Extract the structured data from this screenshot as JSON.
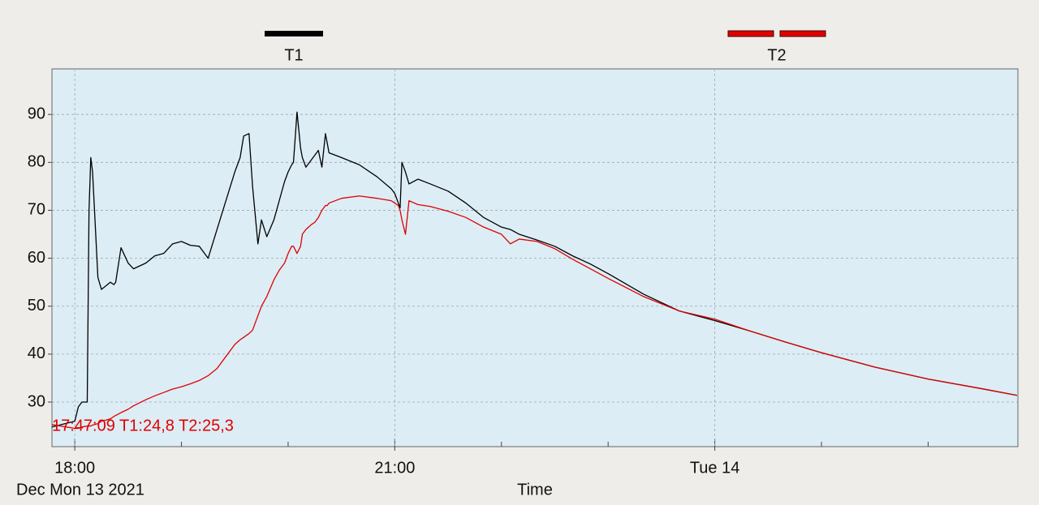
{
  "chart_data": {
    "type": "line",
    "legend_position": "top",
    "x_label": "Time",
    "x_date_label": "Dec Mon 13 2021",
    "annotation": "17:47:09 T1:24,8 T2:25,3",
    "x": [
      "2021-12-13T17:47:09",
      "2021-12-13T18:00",
      "2021-12-13T18:02",
      "2021-12-13T18:04",
      "2021-12-13T18:07",
      "2021-12-13T18:08",
      "2021-12-13T18:09",
      "2021-12-13T18:10",
      "2021-12-13T18:13",
      "2021-12-13T18:15",
      "2021-12-13T18:20",
      "2021-12-13T18:22",
      "2021-12-13T18:23",
      "2021-12-13T18:26",
      "2021-12-13T18:30",
      "2021-12-13T18:33",
      "2021-12-13T18:40",
      "2021-12-13T18:45",
      "2021-12-13T18:50",
      "2021-12-13T18:55",
      "2021-12-13T19:00",
      "2021-12-13T19:05",
      "2021-12-13T19:10",
      "2021-12-13T19:15",
      "2021-12-13T19:20",
      "2021-12-13T19:25",
      "2021-12-13T19:30",
      "2021-12-13T19:33",
      "2021-12-13T19:35",
      "2021-12-13T19:38",
      "2021-12-13T19:40",
      "2021-12-13T19:43",
      "2021-12-13T19:45",
      "2021-12-13T19:48",
      "2021-12-13T19:52",
      "2021-12-13T19:55",
      "2021-12-13T19:58",
      "2021-12-13T20:00",
      "2021-12-13T20:02",
      "2021-12-13T20:03",
      "2021-12-13T20:05",
      "2021-12-13T20:07",
      "2021-12-13T20:08",
      "2021-12-13T20:10",
      "2021-12-13T20:13",
      "2021-12-13T20:15",
      "2021-12-13T20:17",
      "2021-12-13T20:19",
      "2021-12-13T20:21",
      "2021-12-13T20:22",
      "2021-12-13T20:23",
      "2021-12-13T20:30",
      "2021-12-13T20:40",
      "2021-12-13T20:50",
      "2021-12-13T20:58",
      "2021-12-13T21:00",
      "2021-12-13T21:02",
      "2021-12-13T21:03",
      "2021-12-13T21:04",
      "2021-12-13T21:06",
      "2021-12-13T21:08",
      "2021-12-13T21:13",
      "2021-12-13T21:20",
      "2021-12-13T21:30",
      "2021-12-13T21:40",
      "2021-12-13T21:50",
      "2021-12-13T22:00",
      "2021-12-13T22:05",
      "2021-12-13T22:10",
      "2021-12-13T22:20",
      "2021-12-13T22:30",
      "2021-12-13T22:40",
      "2021-12-13T22:50",
      "2021-12-13T23:00",
      "2021-12-13T23:20",
      "2021-12-13T23:40",
      "2021-12-14T00:00",
      "2021-12-14T00:20",
      "2021-12-14T00:40",
      "2021-12-14T01:00",
      "2021-12-14T01:30",
      "2021-12-14T02:00",
      "2021-12-14T02:30",
      "2021-12-14T02:50"
    ],
    "series": [
      {
        "name": "T1",
        "color": "#000000",
        "values": [
          24.8,
          26,
          29,
          30,
          30,
          70,
          81,
          78,
          56,
          53.5,
          55,
          54.5,
          55,
          62.2,
          59,
          57.8,
          59,
          60.5,
          61,
          63,
          63.5,
          62.7,
          62.5,
          60,
          66,
          72,
          78,
          81,
          85.5,
          86,
          75,
          63,
          68,
          64.5,
          68,
          72,
          76,
          78,
          79.5,
          80,
          90.5,
          83,
          81,
          79,
          80.5,
          81.5,
          82.5,
          79,
          86,
          84,
          82,
          81,
          79.5,
          77,
          74.5,
          73.5,
          71.5,
          70.5,
          80,
          78,
          75.5,
          76.5,
          75.5,
          74,
          71.5,
          68.5,
          66.5,
          66,
          65,
          63.8,
          62.5,
          60.5,
          58.8,
          56.8,
          52.5,
          49,
          47,
          44.8,
          42.5,
          40.3,
          37.3,
          34.8,
          32.8,
          31.4
        ]
      },
      {
        "name": "T2",
        "color": "#e00000",
        "values": [
          25.3,
          24.5,
          24.5,
          24.8,
          25,
          25,
          25,
          25.2,
          25.5,
          26,
          26.5,
          27,
          27.2,
          27.8,
          28.5,
          29.2,
          30.5,
          31.3,
          32,
          32.7,
          33.2,
          33.8,
          34.5,
          35.5,
          37,
          39.5,
          42,
          43,
          43.5,
          44.3,
          45,
          48,
          50,
          52,
          55.5,
          57.5,
          59,
          61,
          62.5,
          62.5,
          61,
          62.5,
          65,
          66,
          67,
          67.5,
          68.5,
          70,
          71,
          71,
          71.5,
          72.5,
          73,
          72.5,
          72,
          71.5,
          71,
          70,
          68,
          65,
          72,
          71.2,
          70.8,
          69.8,
          68.5,
          66.5,
          65,
          63,
          64,
          63.5,
          62,
          59.8,
          57.8,
          55.8,
          52,
          49,
          47.3,
          44.8,
          42.5,
          40.3,
          37.3,
          34.8,
          32.8,
          31.4
        ]
      }
    ],
    "xlim": [
      "2021-12-13T17:47:09",
      "2021-12-14T02:50:30"
    ],
    "xticks": [
      {
        "value": "2021-12-13T18:00",
        "label": "18:00"
      },
      {
        "value": "2021-12-13T21:00",
        "label": "21:00"
      },
      {
        "value": "2021-12-14T00:00",
        "label": "Tue 14"
      }
    ],
    "x_minor_ticks": [
      "2021-12-13T19:00",
      "2021-12-13T20:00",
      "2021-12-13T22:00",
      "2021-12-13T23:00",
      "2021-12-14T01:00",
      "2021-12-14T02:00"
    ],
    "ylim": [
      20.7,
      99.5
    ],
    "yticks": [
      30,
      40,
      50,
      60,
      70,
      80,
      90
    ],
    "grid": true
  }
}
